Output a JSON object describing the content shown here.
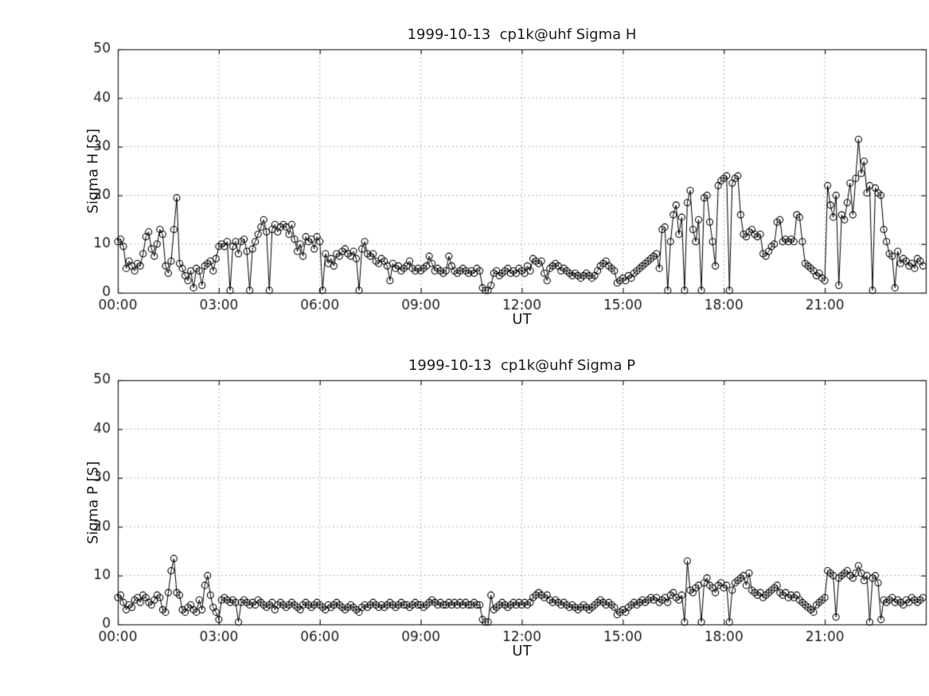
{
  "page": {
    "background": "#ffffff"
  },
  "style": {
    "line_color": "#000000",
    "marker": "open-circle",
    "marker_radius": 4,
    "grid_color": "#b5b5b5",
    "axis_color": "#262626",
    "text_color": "#1a1a1a",
    "tick_font_px": 17
  },
  "chart_data": [
    {
      "type": "line",
      "title": "1999-10-13  cp1k@uhf Sigma H",
      "ylabel": "Sigma H [S]",
      "xlabel": "UT",
      "xlim": [
        0,
        24
      ],
      "ylim": [
        0,
        50
      ],
      "xticks": [
        0,
        3,
        6,
        9,
        12,
        15,
        18,
        21
      ],
      "xtick_labels": [
        "00:00",
        "03:00",
        "06:00",
        "09:00",
        "12:00",
        "15:00",
        "18:00",
        "21:00"
      ],
      "yticks": [
        0,
        10,
        20,
        30,
        40,
        50
      ],
      "ytick_labels": [
        "0",
        "10",
        "20",
        "30",
        "40",
        "50"
      ],
      "grid": true,
      "x_start_hour": 0,
      "x_step_minutes": 5,
      "values": [
        10.5,
        11,
        9.5,
        5,
        6.5,
        5.5,
        4.5,
        6,
        5.5,
        8,
        11.5,
        12.5,
        9,
        7.5,
        10,
        13,
        12,
        5.5,
        4,
        6.5,
        13,
        19.5,
        6,
        5,
        3.5,
        2.5,
        4.5,
        1,
        5,
        4.5,
        1.5,
        5.5,
        6,
        6.5,
        4.5,
        7,
        9.5,
        10,
        9.5,
        10.5,
        0.5,
        9.5,
        10.5,
        8,
        10.5,
        11,
        8.5,
        0.5,
        9,
        10.5,
        12,
        13.5,
        15,
        12.5,
        0.5,
        13,
        14,
        12.5,
        13.5,
        14,
        13.5,
        12,
        14,
        11,
        8.5,
        10,
        7.5,
        11.5,
        10.5,
        11,
        9,
        11.5,
        10.5,
        0.5,
        8,
        6,
        7,
        5.5,
        8,
        7.5,
        8.5,
        9,
        8,
        7.5,
        8.5,
        7,
        0.5,
        9,
        10.5,
        8,
        7.5,
        8,
        6.5,
        6,
        7,
        6.5,
        5.5,
        2.5,
        6,
        5,
        5.5,
        4.5,
        5,
        5.5,
        6.5,
        5,
        4.5,
        5,
        4.5,
        5,
        5.5,
        7.5,
        6,
        4.5,
        5,
        4.5,
        4,
        4.5,
        7.5,
        5.5,
        4.5,
        4,
        4.5,
        5,
        4.5,
        4,
        4.5,
        4,
        5,
        4.5,
        1,
        0.5,
        0.5,
        1.5,
        4,
        4.5,
        3.5,
        4,
        4.5,
        5,
        4,
        4.5,
        4,
        5,
        4.5,
        4,
        5.5,
        4.5,
        7,
        6.5,
        6,
        6.5,
        4,
        2.5,
        5,
        5.5,
        6,
        5.5,
        4.5,
        5,
        4.5,
        4,
        3.5,
        4,
        3.5,
        3,
        3.5,
        4,
        3.5,
        3,
        3.5,
        4.5,
        5.5,
        6,
        6.5,
        5.5,
        5,
        4.5,
        2,
        2.5,
        3,
        2.5,
        3.5,
        3,
        4,
        4.5,
        5,
        5.5,
        6,
        6.5,
        7,
        7.5,
        8,
        5,
        13,
        13.5,
        0.5,
        10.5,
        16,
        18,
        12,
        15.5,
        0.5,
        18.5,
        21,
        13,
        10.5,
        15,
        0.5,
        19.5,
        20,
        14.5,
        10.5,
        5.5,
        22,
        23,
        23.5,
        24,
        0.5,
        22.5,
        23.5,
        24,
        16,
        12,
        11.5,
        12.5,
        13,
        12,
        11.5,
        12,
        8,
        7.5,
        8.5,
        9.5,
        10,
        14.5,
        15,
        10.5,
        11,
        10.5,
        11,
        10.5,
        16,
        15.5,
        10.5,
        6,
        5.5,
        5,
        4.5,
        3.5,
        4,
        3,
        2.5,
        22,
        18,
        15.5,
        20,
        1.5,
        16,
        15,
        18.5,
        22.5,
        16,
        23.5,
        31.5,
        24.5,
        27,
        20.5,
        22,
        0.5,
        21.5,
        20.5,
        20,
        13,
        10.5,
        8,
        7.5,
        1,
        8.5,
        6,
        7,
        6.5,
        5.5,
        6,
        5,
        7,
        6.5,
        5.5
      ]
    },
    {
      "type": "line",
      "title": "1999-10-13  cp1k@uhf Sigma P",
      "ylabel": "Sigma P [S]",
      "xlabel": "UT",
      "xlim": [
        0,
        24
      ],
      "ylim": [
        0,
        50
      ],
      "xticks": [
        0,
        3,
        6,
        9,
        12,
        15,
        18,
        21
      ],
      "xtick_labels": [
        "00:00",
        "03:00",
        "06:00",
        "09:00",
        "12:00",
        "15:00",
        "18:00",
        "21:00"
      ],
      "yticks": [
        0,
        10,
        20,
        30,
        40,
        50
      ],
      "ytick_labels": [
        "0",
        "10",
        "20",
        "30",
        "40",
        "50"
      ],
      "grid": true,
      "x_start_hour": 0,
      "x_step_minutes": 5,
      "values": [
        5.5,
        6,
        4.5,
        3,
        4,
        3.5,
        5,
        5.5,
        4.5,
        6,
        5.5,
        4.5,
        4,
        5,
        6,
        5.5,
        3,
        2.5,
        6.5,
        11,
        13.5,
        6.5,
        6,
        3,
        2.5,
        3.5,
        4,
        3,
        2.5,
        5,
        3,
        8,
        10,
        6,
        3.5,
        2.5,
        1,
        5,
        5.5,
        5,
        4.5,
        5,
        4.5,
        0.5,
        4.5,
        5,
        4.5,
        4,
        4.5,
        4,
        5,
        4.5,
        4,
        3.5,
        4,
        4.5,
        3,
        4,
        4.5,
        4,
        3.5,
        4,
        4.5,
        4,
        3.5,
        3,
        4,
        4.5,
        4,
        3.5,
        4,
        4.5,
        4,
        3.5,
        3,
        4,
        3.5,
        4,
        4.5,
        4,
        3.5,
        3,
        3.5,
        4,
        3.5,
        3,
        2.5,
        3.5,
        4,
        3.5,
        4,
        4.5,
        4,
        3.5,
        4,
        3.5,
        4,
        4.5,
        4,
        3.5,
        4,
        4.5,
        4,
        4,
        3.5,
        4,
        4.5,
        4,
        4,
        3.5,
        4,
        4.5,
        5,
        4.5,
        4,
        4.5,
        4,
        4,
        4.5,
        4,
        4.5,
        4,
        4.5,
        4,
        4.5,
        4,
        4,
        4.5,
        4,
        4,
        1,
        0.5,
        0.5,
        6,
        3,
        3.5,
        4,
        4.5,
        4,
        3.5,
        4,
        4.5,
        4,
        4.5,
        4,
        4.5,
        4,
        4.5,
        5.5,
        6,
        6.5,
        6,
        5.5,
        6,
        5,
        4.5,
        5,
        4.5,
        4,
        4.5,
        4,
        3.5,
        4,
        3.5,
        3,
        3.5,
        4,
        3.5,
        3,
        3.5,
        4,
        4.5,
        5,
        4.5,
        4,
        4.5,
        4,
        3.5,
        2,
        2.5,
        3,
        2.5,
        3.5,
        4,
        4.5,
        4,
        4.5,
        5,
        4.5,
        5,
        5.5,
        5,
        5.5,
        4.5,
        5,
        5.5,
        4.5,
        6,
        6.5,
        5.5,
        5,
        6,
        0.5,
        13,
        7,
        6.5,
        7.5,
        8,
        0.5,
        8.5,
        9.5,
        8,
        7.5,
        6.5,
        8,
        8.5,
        7.5,
        8,
        0.5,
        7,
        8.5,
        9,
        9.5,
        10,
        8,
        10.5,
        7,
        6.5,
        6,
        6.5,
        5.5,
        6,
        6.5,
        7,
        7.5,
        8,
        6.5,
        6,
        6.5,
        5.5,
        6,
        5.5,
        6,
        5,
        4.5,
        4,
        3.5,
        3,
        2.5,
        4,
        4.5,
        5,
        5.5,
        11,
        10.5,
        10,
        1.5,
        9.5,
        10,
        10.5,
        11,
        10,
        9.5,
        10.5,
        12,
        10.5,
        9,
        10,
        0.5,
        9.5,
        10,
        8.5,
        1,
        5,
        4.5,
        5,
        5.5,
        4.5,
        5,
        4.5,
        4,
        5,
        4.5,
        5.5,
        5,
        4.5,
        5,
        5.5
      ]
    }
  ]
}
